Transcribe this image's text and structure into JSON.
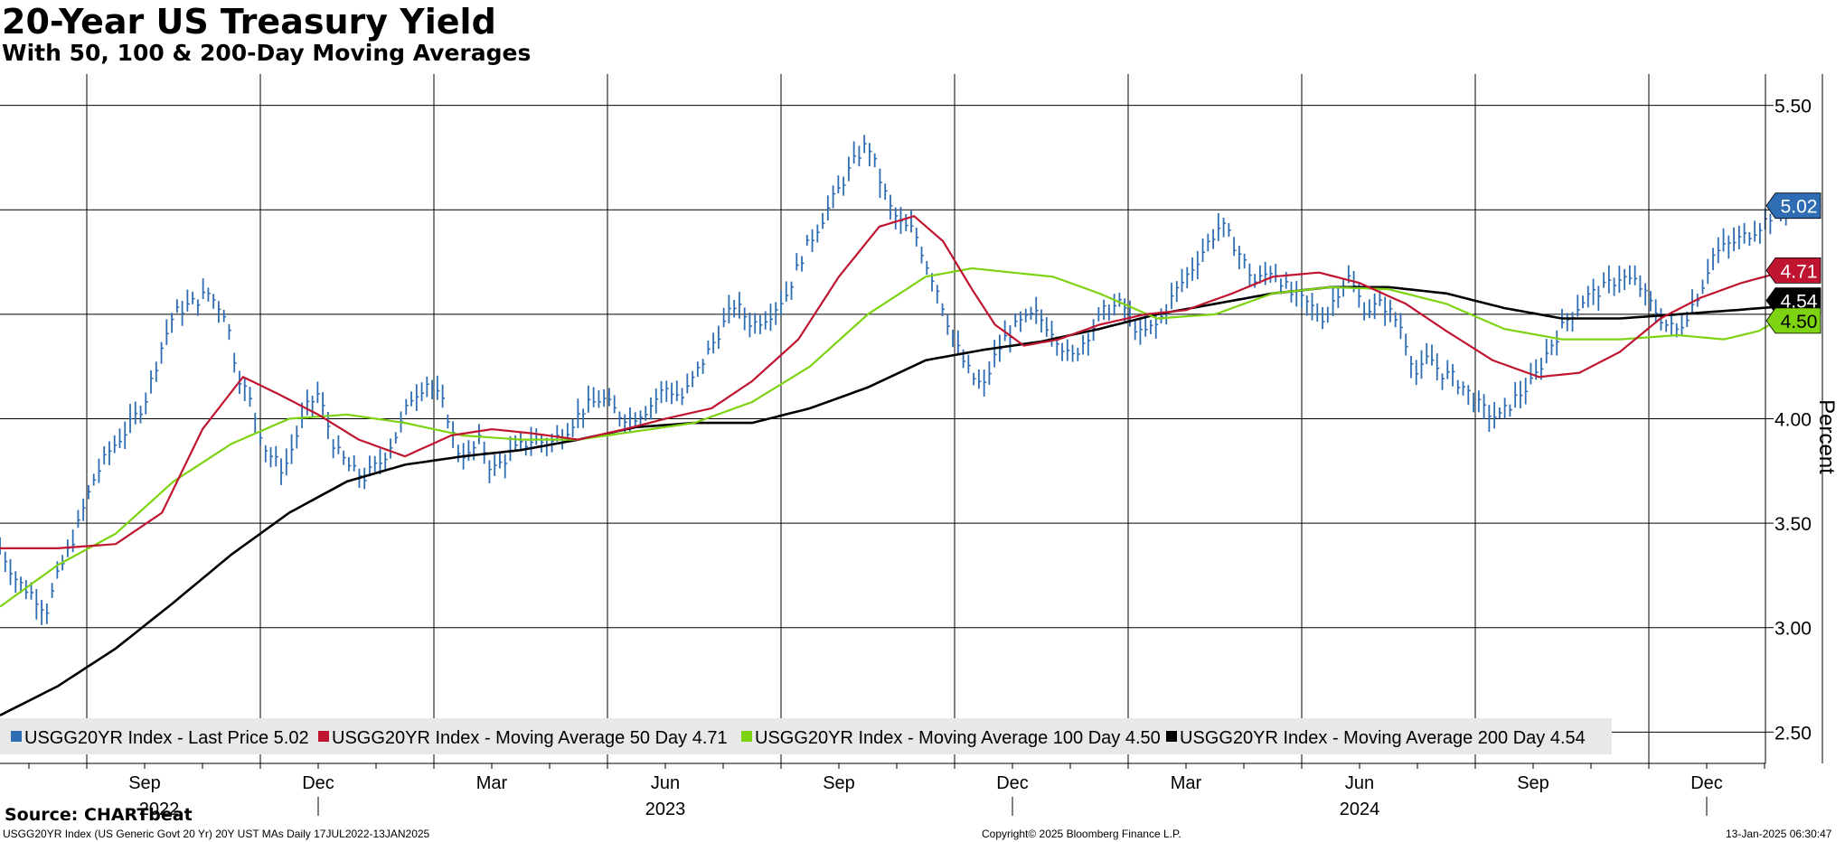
{
  "header": {
    "title": "20-Year US Treasury Yield",
    "subtitle": "With 50, 100 & 200-Day Moving Averages"
  },
  "footer": {
    "source": "Source: CHARTbeat",
    "description": "USGG20YR Index (US Generic Govt 20 Yr) 20Y UST MAs  Daily 17JUL2022-13JAN2025",
    "copyright": "Copyright© 2025 Bloomberg Finance L.P.",
    "timestamp": "13-Jan-2025 06:30:47"
  },
  "chart_data": {
    "type": "line",
    "title": "20-Year US Treasury Yield",
    "subtitle": "With 50, 100 & 200-Day Moving Averages",
    "ylabel": "Percent",
    "ylim": [
      2.35,
      5.65
    ],
    "y_ticks": [
      "2.50",
      "3.00",
      "3.50",
      "4.00",
      "4.50",
      "5.00",
      "5.50"
    ],
    "x_range": [
      "2022-07-17",
      "2025-01-13"
    ],
    "x_month_labels": [
      {
        "label": "Sep",
        "month": 2.5
      },
      {
        "label": "Dec",
        "month": 5.5
      },
      {
        "label": "Mar",
        "month": 8.5
      },
      {
        "label": "Jun",
        "month": 11.5
      },
      {
        "label": "Sep",
        "month": 14.5
      },
      {
        "label": "Dec",
        "month": 17.5
      },
      {
        "label": "Mar",
        "month": 20.5
      },
      {
        "label": "Jun",
        "month": 23.5
      },
      {
        "label": "Sep",
        "month": 26.5
      },
      {
        "label": "Dec",
        "month": 29.5
      }
    ],
    "x_year_labels": [
      {
        "label": "2022",
        "month": 2.75
      },
      {
        "label": "2023",
        "month": 11.5
      },
      {
        "label": "2024",
        "month": 23.5
      }
    ],
    "x_gridlines_month": [
      1.5,
      4.5,
      7.5,
      10.5,
      13.5,
      16.5,
      19.5,
      22.5,
      25.5,
      28.5,
      31.5
    ],
    "x_year_separators_month": [
      5.5,
      17.5,
      29.5
    ],
    "legend_position": "bottom",
    "series": [
      {
        "name": "USGG20YR Index - Last Price 5.02",
        "color": "#2e6db3",
        "style": "bar-ohlc",
        "last_value": "5.02",
        "x": [
          0,
          0.3,
          0.6,
          0.8,
          1.0,
          1.3,
          1.6,
          1.9,
          2.2,
          2.5,
          2.8,
          3.0,
          3.3,
          3.6,
          3.9,
          4.1,
          4.3,
          4.6,
          4.9,
          5.1,
          5.3,
          5.5,
          5.8,
          6.1,
          6.3,
          6.6,
          6.9,
          7.1,
          7.4,
          7.7,
          7.9,
          8.1,
          8.3,
          8.5,
          8.7,
          8.9,
          9.2,
          9.5,
          9.8,
          10.1,
          10.4,
          10.7,
          10.9,
          11.2,
          11.5,
          11.8,
          12.1,
          12.4,
          12.7,
          13.0,
          13.3,
          13.6,
          13.9,
          14.2,
          14.5,
          14.8,
          15.0,
          15.2,
          15.4,
          15.6,
          15.8,
          16.0,
          16.2,
          16.4,
          16.6,
          16.8,
          17.0,
          17.2,
          17.4,
          17.6,
          17.9,
          18.2,
          18.5,
          18.8,
          19.1,
          19.4,
          19.7,
          20.0,
          20.3,
          20.6,
          20.9,
          21.1,
          21.3,
          21.5,
          21.7,
          22.0,
          22.3,
          22.6,
          22.9,
          23.1,
          23.3,
          23.6,
          23.9,
          24.2,
          24.5,
          24.7,
          24.9,
          25.1,
          25.3,
          25.6,
          25.9,
          26.2,
          26.5,
          26.8,
          27.1,
          27.4,
          27.7,
          28.0,
          28.3,
          28.6,
          28.8,
          29.0,
          29.2,
          29.4,
          29.6,
          29.8,
          30.0,
          30.2,
          30.4,
          30.6,
          30.9
        ],
        "values": [
          3.38,
          3.22,
          3.15,
          3.08,
          3.25,
          3.45,
          3.7,
          3.85,
          3.95,
          4.08,
          4.35,
          4.5,
          4.55,
          4.6,
          4.5,
          4.22,
          4.1,
          3.85,
          3.75,
          3.9,
          4.05,
          4.12,
          3.85,
          3.75,
          3.72,
          3.8,
          3.95,
          4.1,
          4.18,
          4.05,
          3.85,
          3.82,
          3.9,
          3.75,
          3.8,
          3.85,
          3.9,
          3.88,
          3.95,
          4.05,
          4.1,
          4.02,
          4.0,
          4.05,
          4.15,
          4.1,
          4.25,
          4.4,
          4.55,
          4.45,
          4.5,
          4.6,
          4.8,
          4.95,
          5.1,
          5.25,
          5.32,
          5.15,
          5.0,
          4.92,
          4.9,
          4.75,
          4.62,
          4.45,
          4.3,
          4.2,
          4.15,
          4.3,
          4.4,
          4.45,
          4.5,
          4.42,
          4.28,
          4.4,
          4.52,
          4.55,
          4.4,
          4.45,
          4.6,
          4.72,
          4.85,
          4.93,
          4.85,
          4.75,
          4.65,
          4.72,
          4.6,
          4.55,
          4.48,
          4.6,
          4.68,
          4.52,
          4.55,
          4.45,
          4.2,
          4.3,
          4.22,
          4.2,
          4.15,
          4.05,
          4.0,
          4.1,
          4.18,
          4.35,
          4.48,
          4.58,
          4.62,
          4.68,
          4.65,
          4.52,
          4.45,
          4.42,
          4.52,
          4.62,
          4.78,
          4.82,
          4.85,
          4.88,
          4.92,
          4.97,
          5.02
        ]
      },
      {
        "name": "USGG20YR Index - Moving Average 50 Day 4.71",
        "color": "#c01530",
        "style": "line",
        "last_value": "4.71",
        "x": [
          0,
          1.0,
          2.0,
          2.8,
          3.5,
          4.2,
          4.8,
          5.5,
          6.2,
          7.0,
          7.8,
          8.5,
          9.2,
          10.0,
          10.8,
          11.5,
          12.3,
          13.0,
          13.8,
          14.5,
          15.2,
          15.8,
          16.3,
          16.8,
          17.2,
          17.7,
          18.3,
          19.0,
          19.8,
          20.5,
          21.3,
          22.0,
          22.8,
          23.5,
          24.3,
          25.0,
          25.8,
          26.6,
          27.3,
          28.0,
          28.7,
          29.4,
          30.1,
          30.9
        ],
        "values": [
          3.38,
          3.38,
          3.4,
          3.55,
          3.95,
          4.2,
          4.12,
          4.02,
          3.9,
          3.82,
          3.92,
          3.95,
          3.93,
          3.9,
          3.95,
          4.0,
          4.05,
          4.18,
          4.38,
          4.68,
          4.92,
          4.97,
          4.85,
          4.62,
          4.45,
          4.35,
          4.38,
          4.45,
          4.5,
          4.52,
          4.6,
          4.68,
          4.7,
          4.65,
          4.55,
          4.42,
          4.28,
          4.2,
          4.22,
          4.32,
          4.48,
          4.58,
          4.65,
          4.71
        ]
      },
      {
        "name": "USGG20YR Index - Moving Average 100 Day 4.50",
        "color": "#7dd311",
        "style": "line",
        "last_value": "4.50",
        "x": [
          0,
          1.0,
          2.0,
          3.0,
          4.0,
          5.0,
          6.0,
          7.0,
          8.0,
          9.0,
          10.0,
          11.0,
          12.0,
          13.0,
          14.0,
          15.0,
          16.0,
          16.8,
          17.5,
          18.2,
          19.0,
          20.0,
          21.0,
          22.0,
          23.0,
          24.0,
          25.0,
          26.0,
          27.0,
          28.0,
          29.0,
          29.8,
          30.4,
          30.9
        ],
        "values": [
          3.1,
          3.3,
          3.45,
          3.7,
          3.88,
          4.0,
          4.02,
          3.98,
          3.92,
          3.9,
          3.9,
          3.94,
          3.98,
          4.08,
          4.25,
          4.5,
          4.68,
          4.72,
          4.7,
          4.68,
          4.6,
          4.48,
          4.5,
          4.6,
          4.63,
          4.62,
          4.55,
          4.43,
          4.38,
          4.38,
          4.4,
          4.38,
          4.42,
          4.5
        ]
      },
      {
        "name": "USGG20YR Index - Moving Average 200 Day 4.54",
        "color": "#000000",
        "style": "line",
        "last_value": "4.54",
        "x": [
          0,
          1.0,
          2.0,
          3.0,
          4.0,
          5.0,
          6.0,
          7.0,
          8.0,
          9.0,
          10.0,
          11.0,
          12.0,
          13.0,
          14.0,
          15.0,
          16.0,
          17.0,
          18.0,
          19.0,
          20.0,
          21.0,
          22.0,
          23.0,
          24.0,
          25.0,
          26.0,
          27.0,
          28.0,
          29.0,
          30.0,
          30.9
        ],
        "values": [
          2.58,
          2.72,
          2.9,
          3.12,
          3.35,
          3.55,
          3.7,
          3.78,
          3.82,
          3.85,
          3.9,
          3.96,
          3.98,
          3.98,
          4.05,
          4.15,
          4.28,
          4.33,
          4.37,
          4.43,
          4.5,
          4.55,
          4.6,
          4.63,
          4.63,
          4.6,
          4.53,
          4.48,
          4.48,
          4.5,
          4.52,
          4.54
        ]
      }
    ],
    "legend": [
      {
        "label": "USGG20YR Index - Last Price 5.02",
        "color": "#2e6db3"
      },
      {
        "label": "USGG20YR Index - Moving Average 50 Day 4.71",
        "color": "#c01530"
      },
      {
        "label": "USGG20YR Index - Moving Average 100 Day 4.50",
        "color": "#7dd311"
      },
      {
        "label": "USGG20YR Index - Moving Average 200 Day 4.54",
        "color": "#000000"
      }
    ],
    "value_tags": [
      {
        "text": "5.02",
        "value": 5.02,
        "bg": "#2e6db3",
        "fg": "#ffffff"
      },
      {
        "text": "4.71",
        "value": 4.71,
        "bg": "#c01530",
        "fg": "#ffffff"
      },
      {
        "text": "4.54",
        "value": 4.54,
        "bg": "#000000",
        "fg": "#ffffff"
      },
      {
        "text": "4.50",
        "value": 4.5,
        "bg": "#7dd311",
        "fg": "#000000"
      }
    ]
  }
}
